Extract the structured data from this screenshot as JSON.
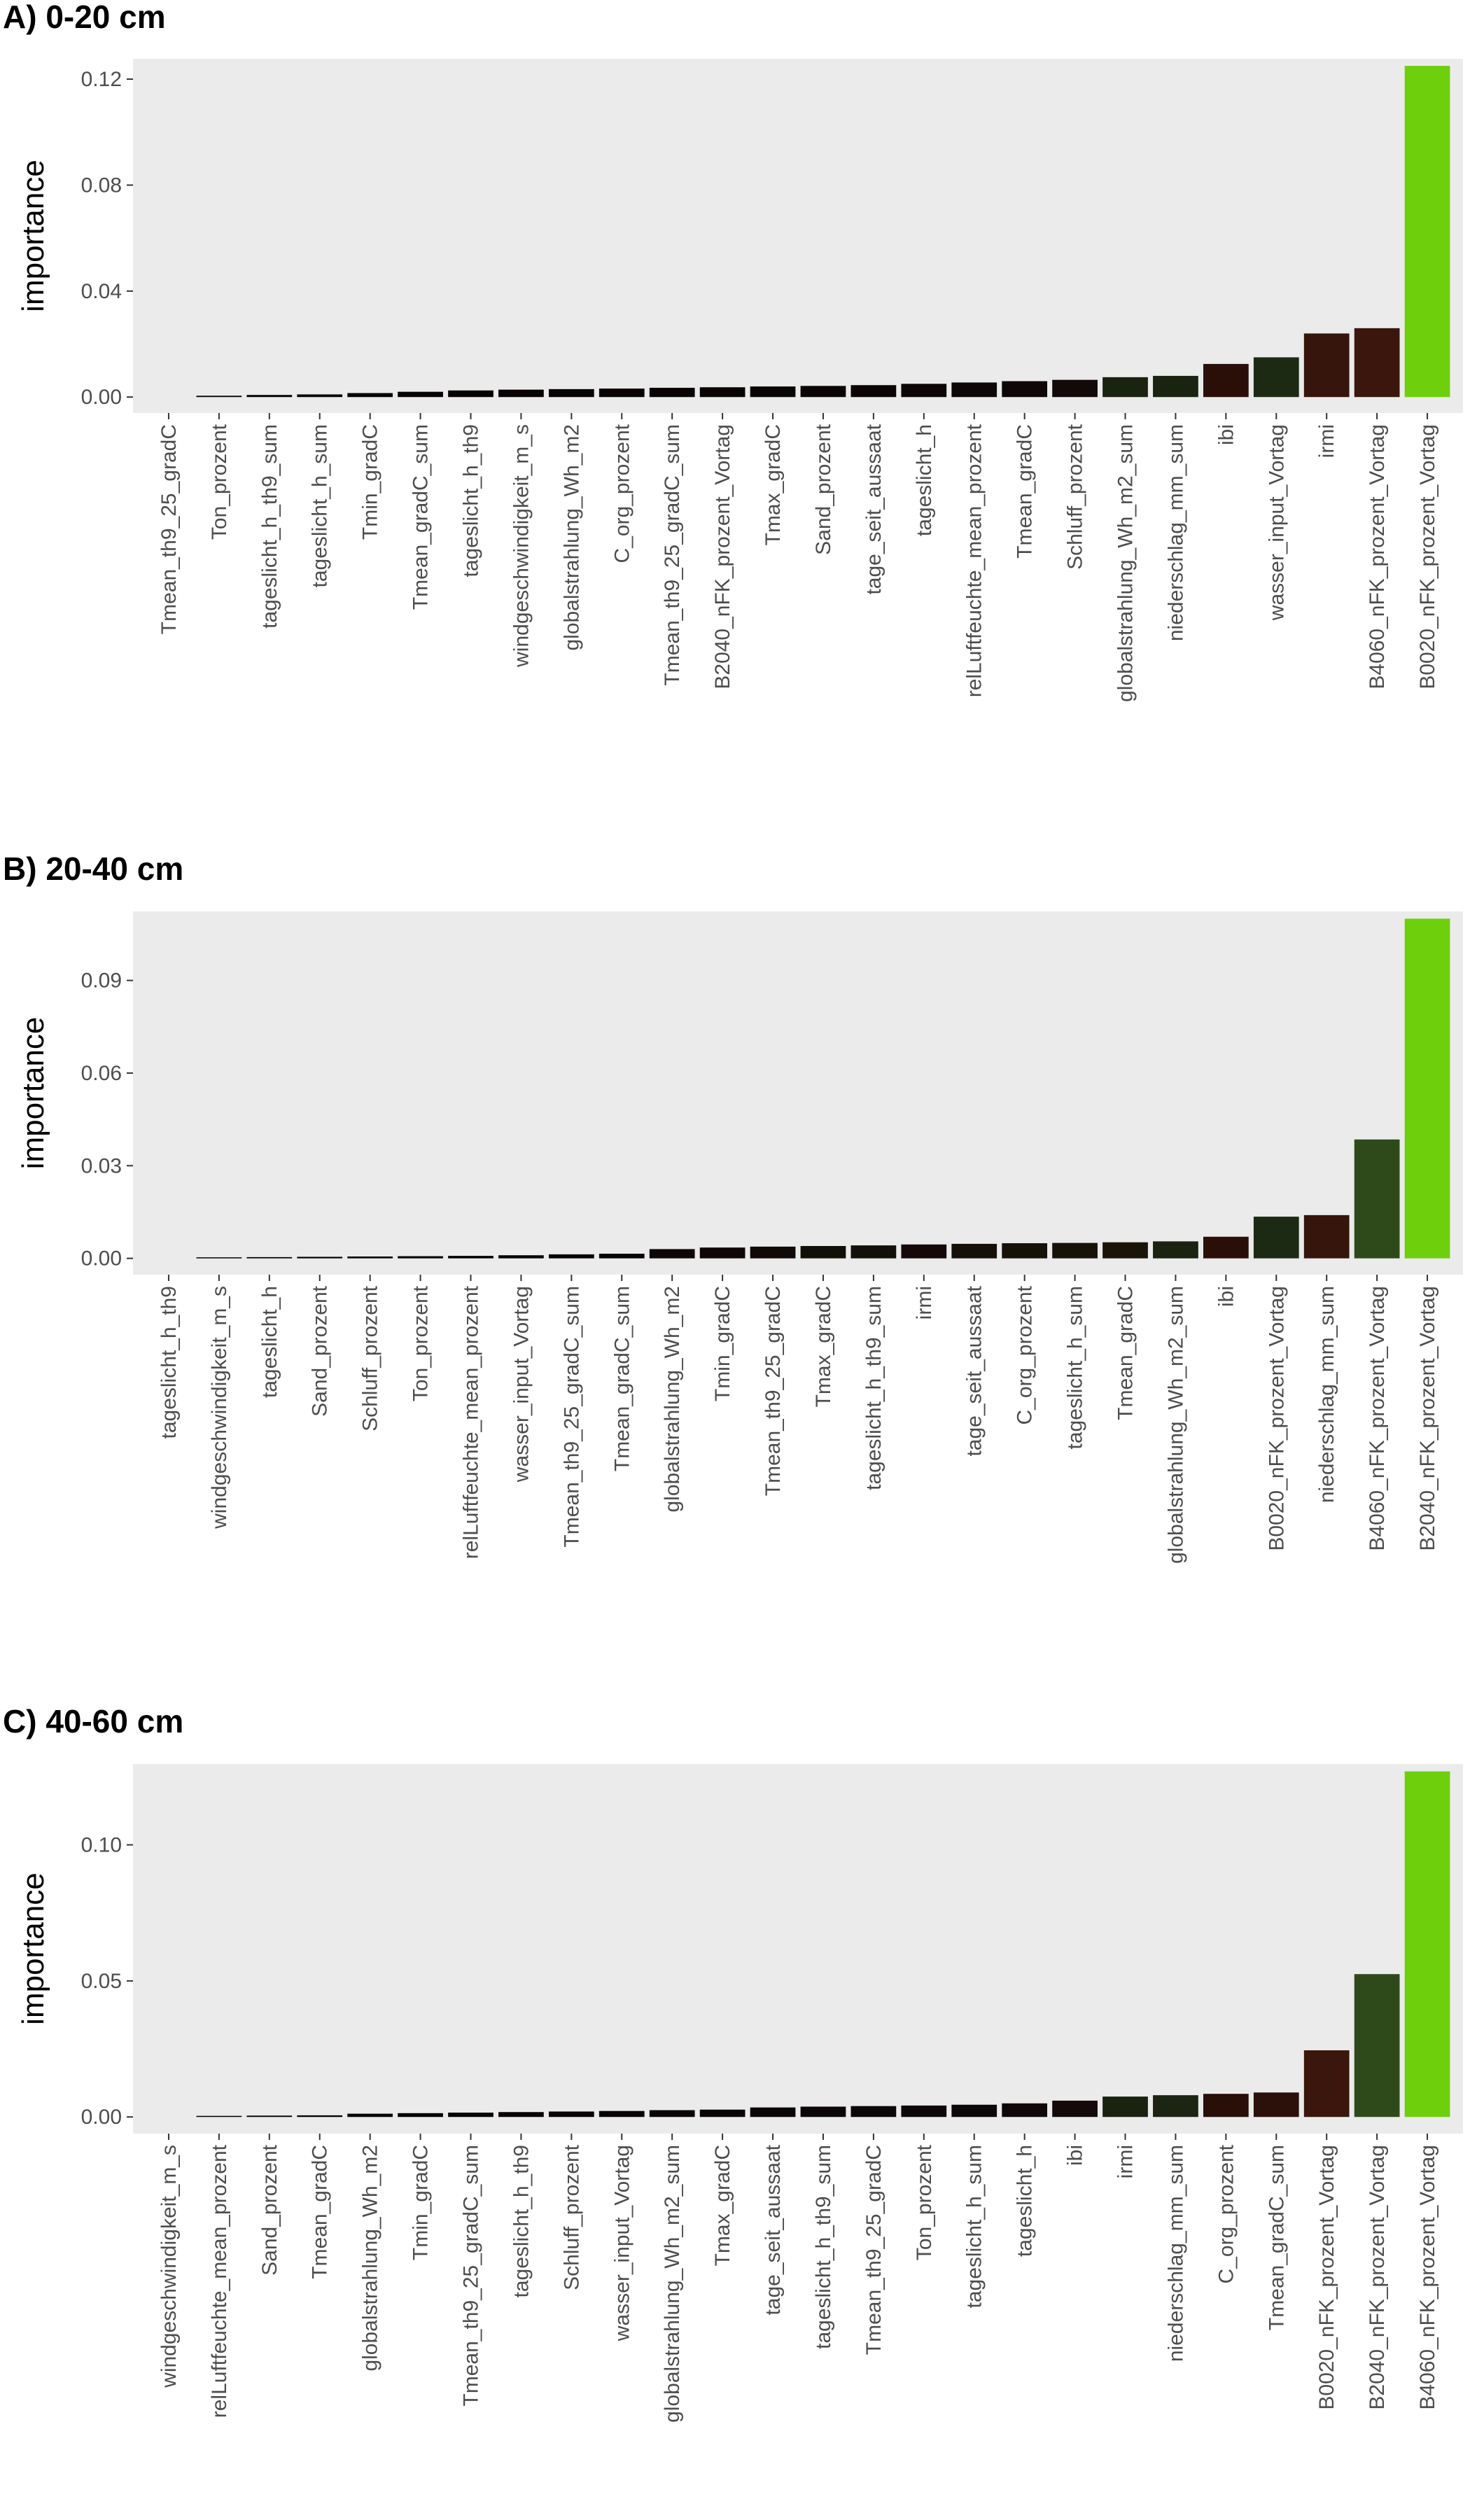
{
  "chart_data": [
    {
      "type": "bar",
      "title": "A) 0-20 cm",
      "ylabel": "importance",
      "xlabel": "",
      "ylim": [
        0,
        0.125
      ],
      "yticks": [
        0.0,
        0.04,
        0.08,
        0.12
      ],
      "ytick_labels": [
        "0.00",
        "0.04",
        "0.08",
        "0.12"
      ],
      "grid": false,
      "legend": "none",
      "background": "#ebebeb",
      "categories": [
        "Tmean_th9_25_gradC",
        "Ton_prozent",
        "tageslicht_h_th9_sum",
        "tageslicht_h_sum",
        "Tmin_gradC",
        "Tmean_gradC_sum",
        "tageslicht_h_th9",
        "windgeschwindigkeit_m_s",
        "globalstrahlung_Wh_m2",
        "C_org_prozent",
        "Tmean_th9_25_gradC_sum",
        "B2040_nFK_prozent_Vortag",
        "Tmax_gradC",
        "Sand_prozent",
        "tage_seit_aussaat",
        "tageslicht_h",
        "relLuftfeuchte_mean_prozent",
        "Tmean_gradC",
        "Schluff_prozent",
        "globalstrahlung_Wh_m2_sum",
        "niederschlag_mm_sum",
        "ibi",
        "wasser_input_Vortag",
        "irmi",
        "B4060_nFK_prozent_Vortag",
        "B0020_nFK_prozent_Vortag"
      ],
      "values": [
        0.0,
        0.0005,
        0.0008,
        0.001,
        0.0015,
        0.002,
        0.0025,
        0.0028,
        0.003,
        0.0032,
        0.0035,
        0.0037,
        0.004,
        0.0042,
        0.0045,
        0.005,
        0.0055,
        0.006,
        0.0065,
        0.0075,
        0.008,
        0.0125,
        0.015,
        0.024,
        0.026,
        0.125
      ],
      "colors": [
        "#000000",
        "#050101",
        "#050101",
        "#050101",
        "#060202",
        "#070303",
        "#080303",
        "#080404",
        "#080404",
        "#090404",
        "#090404",
        "#090505",
        "#0a0505",
        "#0b0505",
        "#0b0505",
        "#0c0606",
        "#0d0707",
        "#0f0707",
        "#120909",
        "#1a2210",
        "#1a2210",
        "#2a0f09",
        "#1c2a14",
        "#35150c",
        "#3a160c",
        "#6ecf0c"
      ]
    },
    {
      "type": "bar",
      "title": "B) 20-40 cm",
      "ylabel": "importance",
      "xlabel": "",
      "ylim": [
        0,
        0.11
      ],
      "yticks": [
        0.0,
        0.03,
        0.06,
        0.09
      ],
      "ytick_labels": [
        "0.00",
        "0.03",
        "0.06",
        "0.09"
      ],
      "grid": false,
      "legend": "none",
      "background": "#ebebeb",
      "categories": [
        "tageslicht_h_th9",
        "windgeschwindigkeit_m_s",
        "tageslicht_h",
        "Sand_prozent",
        "Schluff_prozent",
        "Ton_prozent",
        "relLuftfeuchte_mean_prozent",
        "wasser_input_Vortag",
        "Tmean_th9_25_gradC_sum",
        "Tmean_gradC_sum",
        "globalstrahlung_Wh_m2",
        "Tmin_gradC",
        "Tmean_th9_25_gradC",
        "Tmax_gradC",
        "tageslicht_h_th9_sum",
        "irmi",
        "tage_seit_aussaat",
        "C_org_prozent",
        "tageslicht_h_sum",
        "Tmean_gradC",
        "globalstrahlung_Wh_m2_sum",
        "ibi",
        "B0020_nFK_prozent_Vortag",
        "niederschlag_mm_sum",
        "B4060_nFK_prozent_Vortag",
        "B2040_nFK_prozent_Vortag"
      ],
      "values": [
        0.0,
        0.0003,
        0.0004,
        0.0005,
        0.0006,
        0.0007,
        0.0008,
        0.001,
        0.0013,
        0.0015,
        0.003,
        0.0035,
        0.0038,
        0.004,
        0.0042,
        0.0045,
        0.0047,
        0.0049,
        0.005,
        0.0052,
        0.0055,
        0.007,
        0.0135,
        0.014,
        0.0385,
        0.11
      ],
      "colors": [
        "#000000",
        "#050101",
        "#050101",
        "#050101",
        "#050101",
        "#050101",
        "#050101",
        "#060202",
        "#070303",
        "#070303",
        "#0e0707",
        "#0f0707",
        "#110808",
        "#101008",
        "#121008",
        "#160808",
        "#141008",
        "#171208",
        "#181308",
        "#1a1308",
        "#1a2210",
        "#2a0f09",
        "#1c2a14",
        "#35150c",
        "#2f4a1a",
        "#6ecf0c"
      ]
    },
    {
      "type": "bar",
      "title": "C) 40-60 cm",
      "ylabel": "importance",
      "xlabel": "",
      "ylim": [
        0,
        0.127
      ],
      "yticks": [
        0.0,
        0.05,
        0.1
      ],
      "ytick_labels": [
        "0.00",
        "0.05",
        "0.10"
      ],
      "grid": false,
      "legend": "none",
      "background": "#ebebeb",
      "categories": [
        "windgeschwindigkeit_m_s",
        "relLuftfeuchte_mean_prozent",
        "Sand_prozent",
        "Tmean_gradC",
        "globalstrahlung_Wh_m2",
        "Tmin_gradC",
        "Tmean_th9_25_gradC_sum",
        "tageslicht_h_th9",
        "Schluff_prozent",
        "wasser_input_Vortag",
        "globalstrahlung_Wh_m2_sum",
        "Tmax_gradC",
        "tage_seit_aussaat",
        "tageslicht_h_th9_sum",
        "Tmean_th9_25_gradC",
        "Ton_prozent",
        "tageslicht_h_sum",
        "tageslicht_h",
        "ibi",
        "irmi",
        "niederschlag_mm_sum",
        "C_org_prozent",
        "Tmean_gradC_sum",
        "B0020_nFK_prozent_Vortag",
        "B2040_nFK_prozent_Vortag",
        "B4060_nFK_prozent_Vortag"
      ],
      "values": [
        0.0,
        0.0004,
        0.0005,
        0.0006,
        0.0012,
        0.0014,
        0.0016,
        0.0018,
        0.002,
        0.0022,
        0.0025,
        0.0027,
        0.0035,
        0.0038,
        0.004,
        0.0042,
        0.0045,
        0.005,
        0.006,
        0.0075,
        0.008,
        0.0085,
        0.009,
        0.0245,
        0.0525,
        0.127
      ],
      "colors": [
        "#000000",
        "#050101",
        "#050101",
        "#050101",
        "#060202",
        "#060202",
        "#070303",
        "#070303",
        "#080404",
        "#080404",
        "#090505",
        "#090505",
        "#0b0606",
        "#0c0606",
        "#0d0707",
        "#0d0707",
        "#0e0707",
        "#100808",
        "#150909",
        "#1a2210",
        "#1c2412",
        "#280f08",
        "#2c100a",
        "#3a160c",
        "#2f4a1a",
        "#6ecf0c"
      ]
    }
  ]
}
